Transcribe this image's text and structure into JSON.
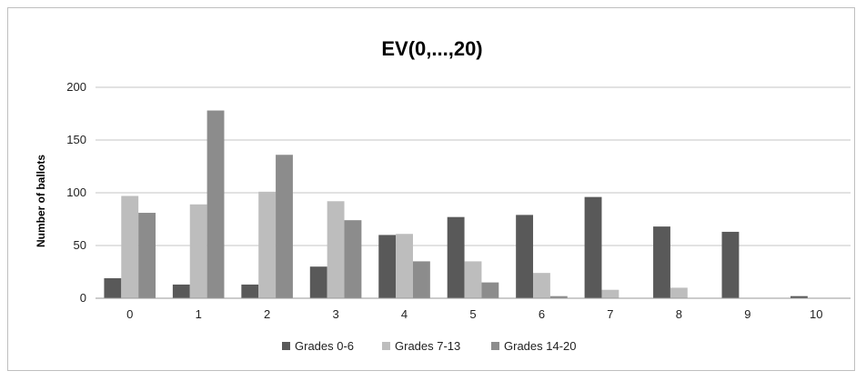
{
  "chart_data": {
    "type": "bar",
    "title": "EV(0,...,20)",
    "xlabel": "",
    "ylabel": "Number of ballots",
    "categories": [
      "0",
      "1",
      "2",
      "3",
      "4",
      "5",
      "6",
      "7",
      "8",
      "9",
      "10"
    ],
    "yticks": [
      "0",
      "50",
      "100",
      "150",
      "200"
    ],
    "ylim": [
      0,
      200
    ],
    "grid": true,
    "legend_position": "bottom",
    "series": [
      {
        "name": "Grades 0-6",
        "color": "#595959",
        "values": [
          19,
          13,
          13,
          30,
          60,
          77,
          79,
          96,
          68,
          63,
          2
        ]
      },
      {
        "name": "Grades 7-13",
        "color": "#bdbdbd",
        "values": [
          97,
          89,
          101,
          92,
          61,
          35,
          24,
          8,
          10,
          0,
          0
        ]
      },
      {
        "name": "Grades 14-20",
        "color": "#8c8c8c",
        "values": [
          81,
          178,
          136,
          74,
          35,
          15,
          2,
          0,
          0,
          0,
          0
        ]
      }
    ]
  }
}
